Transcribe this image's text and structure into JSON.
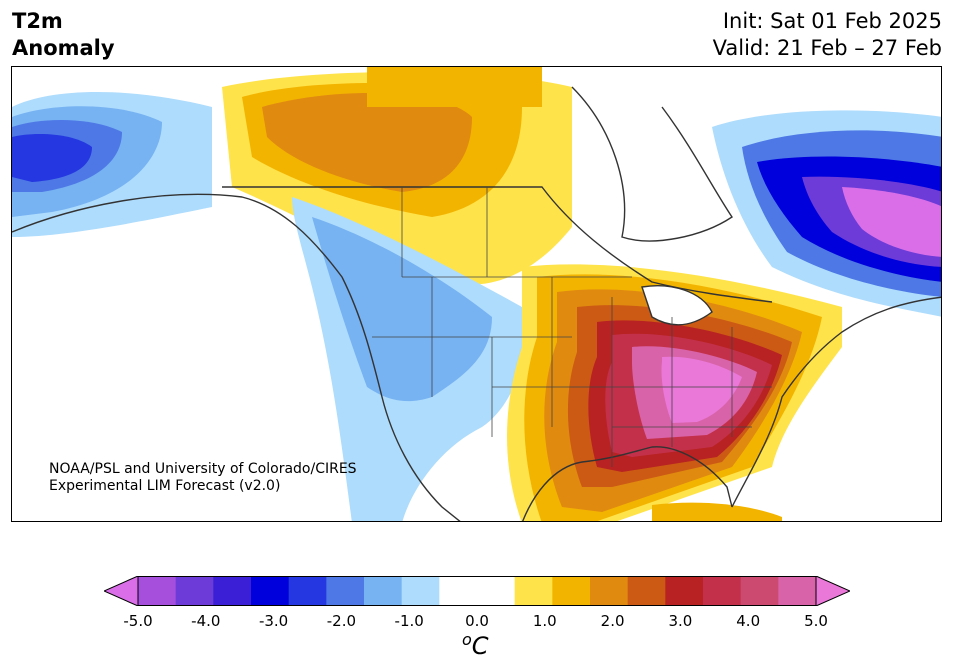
{
  "header": {
    "title_line1": "T2m",
    "title_line2": "Anomaly",
    "init_label": "Init: Sat 01 Feb 2025",
    "valid_label": "Valid: 21 Feb – 27 Feb"
  },
  "map": {
    "region": "North America",
    "variable": "2-meter temperature anomaly",
    "credit_line1": "NOAA/PSL and University of Colorado/CIRES",
    "credit_line2": "Experimental LIM Forecast (v2.0)",
    "colors": {
      "coastline": "#333333",
      "border": "#444444",
      "land_neutral": "#ffffff"
    }
  },
  "colorbar": {
    "unit_base": "C",
    "unit_sup": "o",
    "levels": [
      -5.0,
      -4.5,
      -4.0,
      -3.5,
      -3.0,
      -2.5,
      -2.0,
      -1.5,
      -1.0,
      -0.5,
      0.5,
      1.0,
      1.5,
      2.0,
      2.5,
      3.0,
      3.5,
      4.0,
      4.5,
      5.0
    ],
    "colors": [
      "#d96ee8",
      "#a64fdc",
      "#6c3bd8",
      "#3b1fd6",
      "#0000dc",
      "#2437e0",
      "#4d78e6",
      "#77b2f2",
      "#aedcfc",
      "#ffffff",
      "#ffffff",
      "#ffe34a",
      "#f3b400",
      "#e08a10",
      "#cc5a14",
      "#b82222",
      "#c3304a",
      "#cc4a70",
      "#d963a8",
      "#e978d8"
    ],
    "tick_labels": [
      "-5.0",
      "-4.0",
      "-3.0",
      "-2.0",
      "-1.0",
      "0.0",
      "1.0",
      "2.0",
      "3.0",
      "4.0",
      "5.0"
    ]
  }
}
